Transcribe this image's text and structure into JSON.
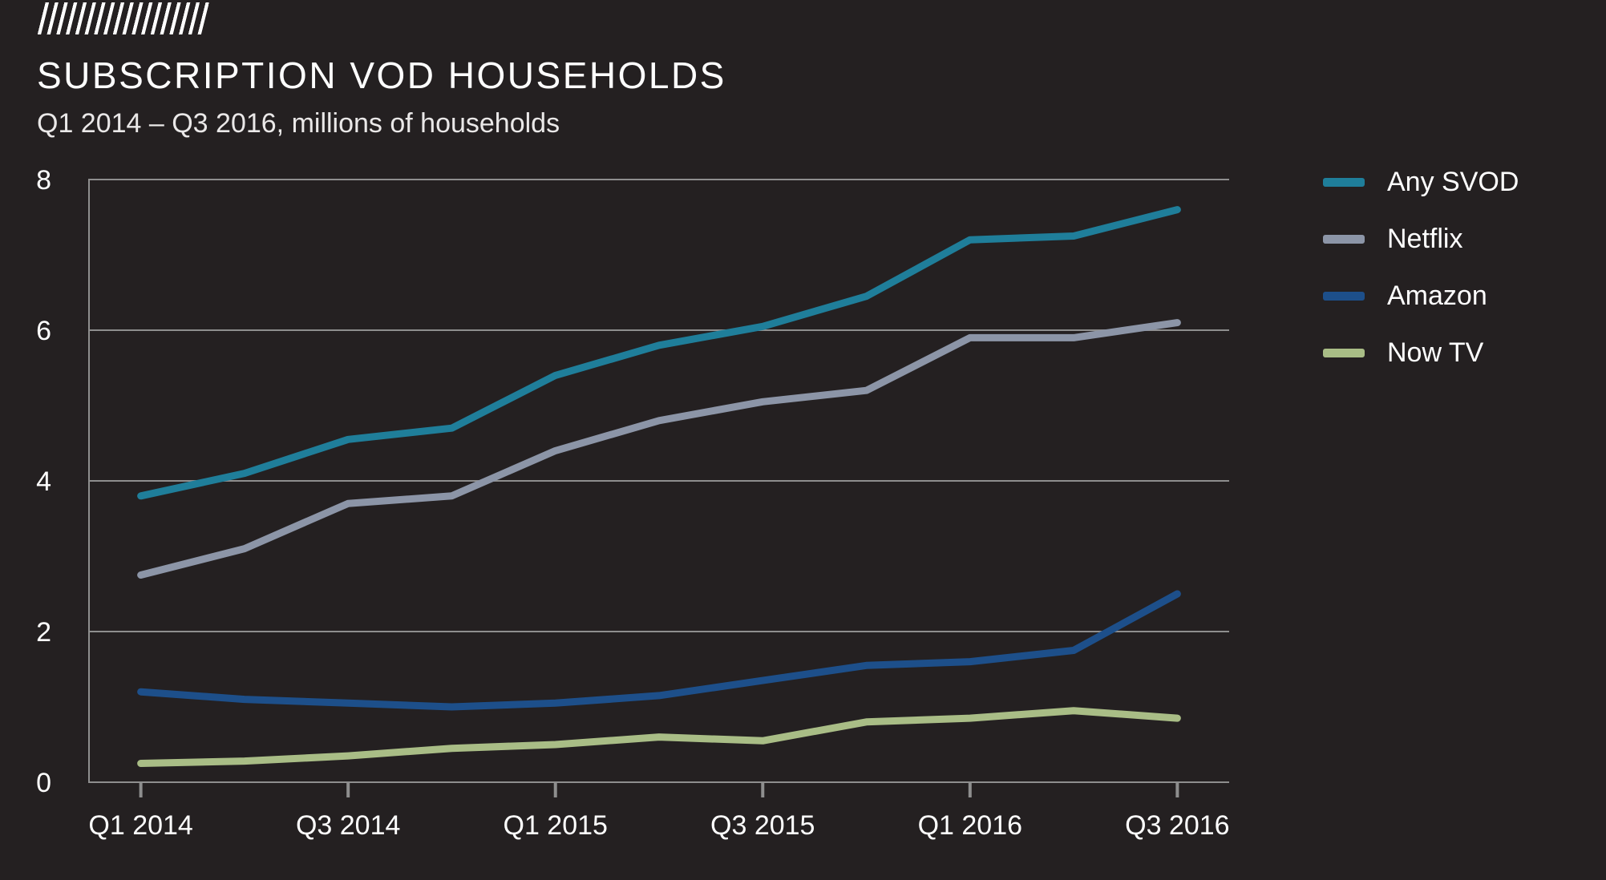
{
  "header": {
    "title": "SUBSCRIPTION VOD HOUSEHOLDS",
    "subtitle": "Q1 2014 – Q3 2016, millions of households"
  },
  "colors": {
    "background": "#242021",
    "grid": "#8e8e8e",
    "tick": "#8e8e8e",
    "text_primary": "#ffffff",
    "text_secondary": "#eae8e8"
  },
  "chart_data": {
    "type": "line",
    "title": "SUBSCRIPTION VOD HOUSEHOLDS",
    "subtitle": "Q1 2014 – Q3 2016, millions of households",
    "ylabel": "millions of households",
    "ylim": [
      0,
      8
    ],
    "yticks": [
      0,
      2,
      4,
      6,
      8
    ],
    "grid": "horizontal",
    "legend_position": "right",
    "categories": [
      "Q1 2014",
      "Q2 2014",
      "Q3 2014",
      "Q4 2014",
      "Q1 2015",
      "Q2 2015",
      "Q3 2015",
      "Q4 2015",
      "Q1 2016",
      "Q2 2016",
      "Q3 2016"
    ],
    "x_tick_indices": [
      0,
      2,
      4,
      6,
      8,
      10
    ],
    "x_tick_labels": [
      "Q1 2014",
      "Q3 2014",
      "Q1 2015",
      "Q3 2015",
      "Q1 2016",
      "Q3 2016"
    ],
    "series": [
      {
        "name": "Any SVOD",
        "color": "#1f7e9a",
        "values": [
          3.8,
          4.1,
          4.55,
          4.7,
          5.4,
          5.8,
          6.05,
          6.45,
          7.2,
          7.25,
          7.6
        ]
      },
      {
        "name": "Netflix",
        "color": "#8c95a7",
        "values": [
          2.75,
          3.1,
          3.7,
          3.8,
          4.4,
          4.8,
          5.05,
          5.2,
          5.9,
          5.9,
          6.1
        ]
      },
      {
        "name": "Amazon",
        "color": "#1d4f8a",
        "values": [
          1.2,
          1.1,
          1.05,
          1.0,
          1.05,
          1.15,
          1.35,
          1.55,
          1.6,
          1.75,
          2.5
        ]
      },
      {
        "name": "Now TV",
        "color": "#a9bd86",
        "values": [
          0.25,
          0.28,
          0.35,
          0.45,
          0.5,
          0.6,
          0.55,
          0.8,
          0.85,
          0.95,
          0.85
        ]
      }
    ]
  }
}
